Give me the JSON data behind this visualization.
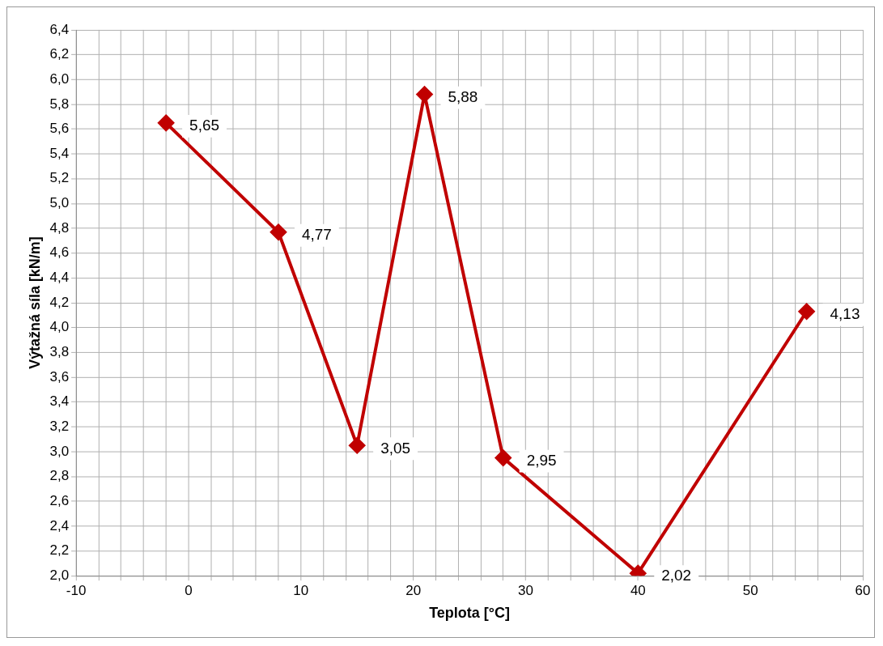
{
  "chart_data": {
    "type": "line",
    "xlabel": "Teplota [°C]",
    "ylabel": "Výtažná síla [kN/m]",
    "x": [
      -2,
      8,
      15,
      21,
      28,
      40,
      55
    ],
    "series": [
      {
        "color": "#c00000",
        "values": [
          5.65,
          4.77,
          3.05,
          5.88,
          2.95,
          2.02,
          4.13
        ],
        "value_labels": [
          "5,65",
          "4,77",
          "3,05",
          "5,88",
          "2,95",
          "2,02",
          "4,13"
        ]
      }
    ],
    "xlim": [
      -10,
      60
    ],
    "xticks": [
      -10,
      {
        "value": -8,
        "label": null
      },
      {
        "value": -6,
        "label": null
      },
      {
        "value": -4,
        "label": null
      },
      {
        "value": -2,
        "label": null
      },
      0,
      {
        "value": 2,
        "label": null
      },
      {
        "value": 4,
        "label": null
      },
      {
        "value": 6,
        "label": null
      },
      {
        "value": 8,
        "label": null
      },
      10,
      {
        "value": 12,
        "label": null
      },
      {
        "value": 14,
        "label": null
      },
      {
        "value": 16,
        "label": null
      },
      {
        "value": 18,
        "label": null
      },
      20,
      {
        "value": 22,
        "label": null
      },
      {
        "value": 24,
        "label": null
      },
      {
        "value": 26,
        "label": null
      },
      {
        "value": 28,
        "label": null
      },
      30,
      {
        "value": 32,
        "label": null
      },
      {
        "value": 34,
        "label": null
      },
      {
        "value": 36,
        "label": null
      },
      {
        "value": 38,
        "label": null
      },
      40,
      {
        "value": 42,
        "label": null
      },
      {
        "value": 44,
        "label": null
      },
      {
        "value": 46,
        "label": null
      },
      {
        "value": 48,
        "label": null
      },
      50,
      {
        "value": 52,
        "label": null
      },
      {
        "value": 54,
        "label": null
      },
      {
        "value": 56,
        "label": null
      },
      {
        "value": 58,
        "label": null
      },
      60
    ],
    "ylim": [
      2,
      6.4
    ],
    "yticks": [
      {
        "value": 2,
        "label": "2,0"
      },
      {
        "value": 2.2,
        "label": "2,2"
      },
      {
        "value": 2.4,
        "label": "2,4"
      },
      {
        "value": 2.6,
        "label": "2,6"
      },
      {
        "value": 2.8,
        "label": "2,8"
      },
      {
        "value": 3,
        "label": "3,0"
      },
      {
        "value": 3.2,
        "label": "3,2"
      },
      {
        "value": 3.4,
        "label": "3,4"
      },
      {
        "value": 3.6,
        "label": "3,6"
      },
      {
        "value": 3.8,
        "label": "3,8"
      },
      {
        "value": 4,
        "label": "4,0"
      },
      {
        "value": 4.2,
        "label": "4,2"
      },
      {
        "value": 4.4,
        "label": "4,4"
      },
      {
        "value": 4.6,
        "label": "4,6"
      },
      {
        "value": 4.8,
        "label": "4,8"
      },
      {
        "value": 5,
        "label": "5,0"
      },
      {
        "value": 5.2,
        "label": "5,2"
      },
      {
        "value": 5.4,
        "label": "5,4"
      },
      {
        "value": 5.6,
        "label": "5,6"
      },
      {
        "value": 5.8,
        "label": "5,8"
      },
      {
        "value": 6,
        "label": "6,0"
      },
      {
        "value": 6.2,
        "label": "6,2"
      },
      {
        "value": 6.4,
        "label": "6,4"
      }
    ],
    "grid": true,
    "marker": "diamond",
    "line_style": "solid",
    "legend": false
  }
}
